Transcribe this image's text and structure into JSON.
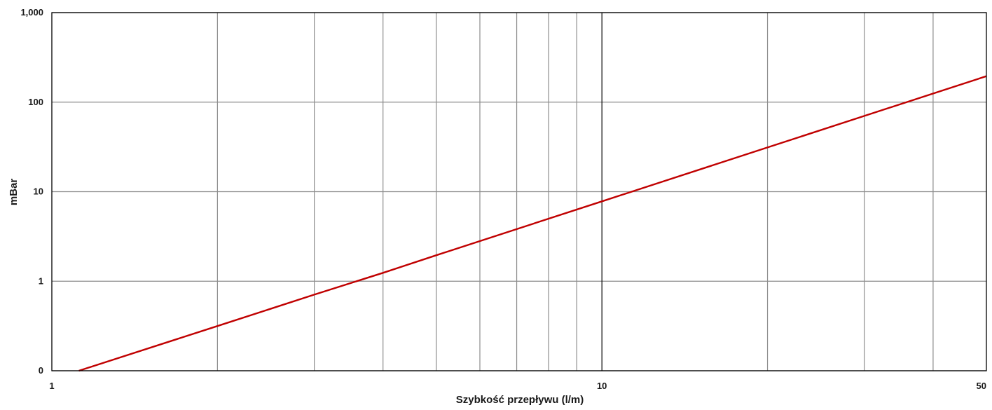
{
  "chart_data": {
    "type": "line",
    "title": "",
    "xlabel": "Szybkość przepływu (l/m)",
    "ylabel": "mBar",
    "x_scale": "log",
    "y_scale": "log",
    "xlim": [
      1,
      50
    ],
    "ylim": [
      0.1,
      1000
    ],
    "x_tick_labels": [
      {
        "value": 1,
        "label": "1"
      },
      {
        "value": 10,
        "label": "10"
      },
      {
        "value": 50,
        "label": "50"
      }
    ],
    "y_tick_labels": [
      {
        "value": 0.1,
        "label": "0"
      },
      {
        "value": 1,
        "label": "1"
      },
      {
        "value": 10,
        "label": "10"
      },
      {
        "value": 100,
        "label": "100"
      },
      {
        "value": 1000,
        "label": "1,000"
      }
    ],
    "x_minor_gridlines": [
      2,
      3,
      4,
      5,
      6,
      7,
      8,
      9,
      20,
      30,
      40
    ],
    "grid": true,
    "legend": "none",
    "series": [
      {
        "color": "#c00000",
        "x": [
          1.12,
          2,
          3,
          4,
          5,
          10,
          20,
          30,
          50
        ],
        "y": [
          0.1,
          0.316,
          0.708,
          1.24,
          1.95,
          7.8,
          31.2,
          70.2,
          195
        ]
      }
    ],
    "colors": {
      "grid": "#8c8c8c",
      "axis": "#000000",
      "line": "#c00000"
    }
  }
}
